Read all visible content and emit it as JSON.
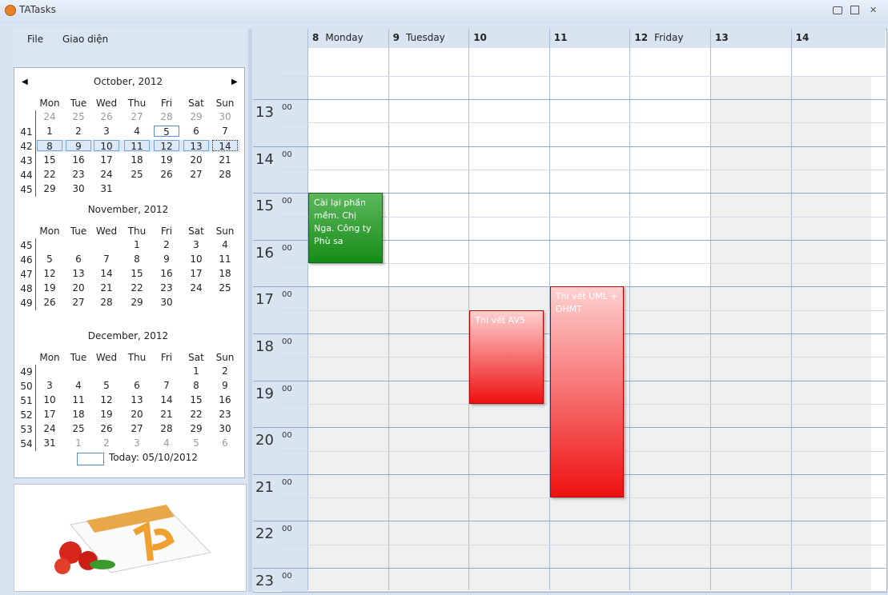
{
  "window": {
    "title": "TATasks"
  },
  "menu": [
    "File",
    "Giao diện"
  ],
  "calendar": {
    "weekdays": [
      "Mon",
      "Tue",
      "Wed",
      "Thu",
      "Fri",
      "Sat",
      "Sun"
    ],
    "months": [
      {
        "title": "October, 2012",
        "weeks": [
          {
            "number": null,
            "days": [
              "24",
              "25",
              "26",
              "27",
              "28",
              "29",
              "30"
            ]
          },
          {
            "number": "41",
            "days": [
              "1",
              "2",
              "3",
              "4",
              "5",
              "6",
              "7"
            ]
          },
          {
            "number": "42",
            "days": [
              "8",
              "9",
              "10",
              "11",
              "12",
              "13",
              "14"
            ]
          },
          {
            "number": "43",
            "days": [
              "15",
              "16",
              "17",
              "18",
              "19",
              "20",
              "21"
            ]
          },
          {
            "number": "44",
            "days": [
              "22",
              "23",
              "24",
              "25",
              "26",
              "27",
              "28"
            ]
          },
          {
            "number": "45",
            "days": [
              "29",
              "30",
              "31",
              null,
              null,
              null,
              null
            ]
          }
        ]
      },
      {
        "title": "November, 2012",
        "weeks": [
          {
            "number": "45",
            "days": [
              null,
              null,
              null,
              "1",
              "2",
              "3",
              "4"
            ]
          },
          {
            "number": "46",
            "days": [
              "5",
              "6",
              "7",
              "8",
              "9",
              "10",
              "11"
            ]
          },
          {
            "number": "47",
            "days": [
              "12",
              "13",
              "14",
              "15",
              "16",
              "17",
              "18"
            ]
          },
          {
            "number": "48",
            "days": [
              "19",
              "20",
              "21",
              "22",
              "23",
              "24",
              "25"
            ]
          },
          {
            "number": "49",
            "days": [
              "26",
              "27",
              "28",
              "29",
              "30",
              null,
              null
            ]
          }
        ]
      },
      {
        "title": "December, 2012",
        "weeks": [
          {
            "number": "49",
            "days": [
              null,
              null,
              null,
              null,
              null,
              "1",
              "2"
            ]
          },
          {
            "number": "50",
            "days": [
              "3",
              "4",
              "5",
              "6",
              "7",
              "8",
              "9"
            ]
          },
          {
            "number": "51",
            "days": [
              "10",
              "11",
              "12",
              "13",
              "14",
              "15",
              "16"
            ]
          },
          {
            "number": "52",
            "days": [
              "17",
              "18",
              "19",
              "20",
              "21",
              "22",
              "23"
            ]
          },
          {
            "number": "53",
            "days": [
              "24",
              "25",
              "26",
              "27",
              "28",
              "29",
              "30"
            ]
          },
          {
            "number": "54",
            "days": [
              "31",
              "1",
              "2",
              "3",
              "4",
              "5",
              "6"
            ]
          }
        ]
      }
    ],
    "today": "Today: 05/10/2012"
  },
  "scheduler": {
    "days": [
      {
        "number": "8",
        "name": "Monday"
      },
      {
        "number": "9",
        "name": "Tuesday"
      },
      {
        "number": "10"
      },
      {
        "number": "11"
      },
      {
        "number": "12",
        "name": "Friday"
      },
      {
        "number": "13"
      },
      {
        "number": "14"
      }
    ],
    "hours": [
      "13",
      "14",
      "15",
      "16",
      "17",
      "18",
      "19",
      "20",
      "21",
      "22",
      "23"
    ],
    "minutes": "00",
    "events": [
      {
        "text": "Cài lại phần mềm. Chị Nga. Công ty Phù sa"
      },
      {
        "text": "Thi vết AV5"
      },
      {
        "text": "Thi vết UML + ĐHMT"
      }
    ]
  }
}
